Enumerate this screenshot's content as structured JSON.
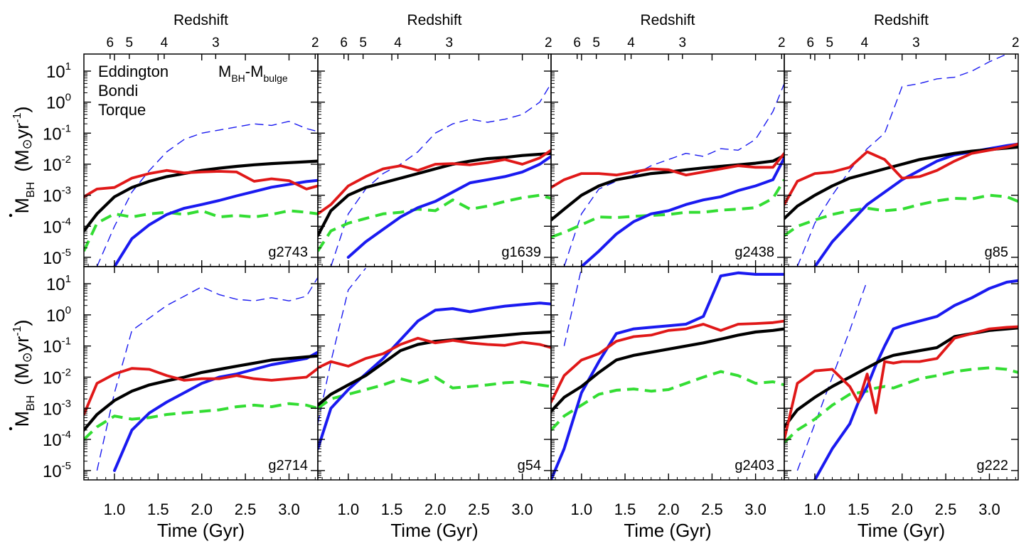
{
  "colors": {
    "eddington": "#000000",
    "bondi": "#1a1af0",
    "torque": "#e01818",
    "msigma": "#33dd33",
    "axis": "#000000"
  },
  "labels": {
    "top_axis": "Redshift",
    "x_axis": "Time  (Gyr)",
    "y_axis_main": "M",
    "y_axis_sub": "BH",
    "y_axis_units": "(M",
    "y_axis_units_sun": "⊙",
    "y_axis_units_tail": "yr",
    "y_axis_units_exp": "-1",
    "y_axis_units_close": ")"
  },
  "legend": {
    "eddington": "Eddington",
    "bondi": "Bondi",
    "torque": "Torque",
    "msigma_main": "M",
    "msigma_sub1": "BH",
    "msigma_dash": "-M",
    "msigma_sub2": "bulge"
  },
  "chart_data": {
    "type": "line",
    "x_ticks": [
      {
        "value": 1.0,
        "label": "1.0"
      },
      {
        "value": 1.5,
        "label": "1.5"
      },
      {
        "value": 2.0,
        "label": "2.0"
      },
      {
        "value": 2.5,
        "label": "2.5"
      },
      {
        "value": 3.0,
        "label": "3.0"
      }
    ],
    "redshift_ticks": [
      {
        "t": 0.95,
        "label": "6"
      },
      {
        "t": 1.17,
        "label": "5"
      },
      {
        "t": 1.57,
        "label": "4"
      },
      {
        "t": 2.16,
        "label": "3"
      },
      {
        "t": 3.3,
        "label": "2"
      }
    ],
    "y_ticks": [
      {
        "exp": 1,
        "label": "10",
        "sup": "1"
      },
      {
        "exp": 0,
        "label": "10",
        "sup": "0"
      },
      {
        "exp": -1,
        "label": "10",
        "sup": "-1"
      },
      {
        "exp": -2,
        "label": "10",
        "sup": "-2"
      },
      {
        "exp": -3,
        "label": "10",
        "sup": "-3"
      },
      {
        "exp": -4,
        "label": "10",
        "sup": "-4"
      },
      {
        "exp": -5,
        "label": "10",
        "sup": "-5"
      }
    ],
    "xlim": [
      0.65,
      3.33
    ],
    "ylim_log10": [
      -5.3,
      1.55
    ],
    "series_keys": [
      "bondi_dashed",
      "msigma",
      "bondi",
      "eddington",
      "torque"
    ],
    "panels": [
      {
        "label": "g2743",
        "t": [
          0.65,
          0.8,
          1.0,
          1.2,
          1.4,
          1.6,
          1.8,
          2.0,
          2.2,
          2.4,
          2.6,
          2.8,
          3.0,
          3.2,
          3.33
        ],
        "eddington": [
          -4.15,
          -3.6,
          -3.05,
          -2.75,
          -2.55,
          -2.4,
          -2.3,
          -2.2,
          -2.13,
          -2.07,
          -2.02,
          -1.98,
          -1.95,
          -1.92,
          -1.9
        ],
        "bondi_dashed": [
          null,
          -5.3,
          -4.0,
          -2.9,
          -2.2,
          -1.6,
          -1.2,
          -1.0,
          -0.9,
          -0.8,
          -0.7,
          -0.75,
          -0.62,
          -0.85,
          -0.95
        ],
        "bondi": [
          null,
          null,
          -5.3,
          -4.4,
          -3.95,
          -3.62,
          -3.42,
          -3.3,
          -3.17,
          -3.02,
          -2.88,
          -2.74,
          -2.65,
          -2.56,
          -2.52
        ],
        "torque": [
          -3.05,
          -2.8,
          -2.75,
          -2.45,
          -2.3,
          -2.2,
          -2.28,
          -2.25,
          -2.23,
          -2.25,
          -2.55,
          -2.47,
          -2.53,
          -2.8,
          -2.7
        ],
        "msigma": [
          -4.8,
          -3.9,
          -3.6,
          -3.7,
          -3.6,
          -3.55,
          -3.62,
          -3.5,
          -3.7,
          -3.65,
          -3.7,
          -3.62,
          -3.5,
          -3.55,
          -3.6
        ]
      },
      {
        "label": "g1639",
        "t": [
          0.65,
          0.8,
          1.0,
          1.2,
          1.4,
          1.6,
          1.8,
          2.0,
          2.2,
          2.4,
          2.6,
          2.8,
          3.0,
          3.2,
          3.33
        ],
        "eddington": [
          -4.3,
          -3.5,
          -3.0,
          -2.75,
          -2.6,
          -2.45,
          -2.3,
          -2.15,
          -2.0,
          -1.9,
          -1.82,
          -1.78,
          -1.72,
          -1.68,
          -1.65
        ],
        "bondi_dashed": [
          null,
          -5.3,
          -3.6,
          -2.8,
          -2.3,
          -2.0,
          -1.6,
          -1.0,
          -0.7,
          -0.55,
          -0.65,
          -0.55,
          -0.4,
          0.0,
          0.6
        ],
        "bondi": [
          null,
          null,
          -5.0,
          -4.5,
          -4.1,
          -3.7,
          -3.4,
          -3.2,
          -2.9,
          -2.6,
          -2.5,
          -2.4,
          -2.25,
          -2.0,
          -1.75
        ],
        "torque": [
          -3.6,
          -3.3,
          -2.7,
          -2.4,
          -2.15,
          -2.05,
          -2.2,
          -2.0,
          -1.98,
          -2.02,
          -1.95,
          -1.85,
          -2.0,
          -1.8,
          -1.55
        ],
        "msigma": [
          -4.8,
          -4.15,
          -3.9,
          -3.75,
          -3.6,
          -3.55,
          -3.45,
          -3.5,
          -3.15,
          -3.45,
          -3.35,
          -3.2,
          -3.08,
          -3.0,
          -3.1
        ]
      },
      {
        "label": "g2438",
        "t": [
          0.65,
          0.8,
          1.0,
          1.2,
          1.4,
          1.6,
          1.8,
          2.0,
          2.2,
          2.4,
          2.6,
          2.8,
          3.0,
          3.2,
          3.33
        ],
        "eddington": [
          -3.8,
          -3.45,
          -3.0,
          -2.7,
          -2.5,
          -2.4,
          -2.3,
          -2.25,
          -2.18,
          -2.12,
          -2.07,
          -2.02,
          -1.97,
          -1.9,
          -1.72
        ],
        "bondi_dashed": [
          null,
          -5.3,
          -3.6,
          -2.8,
          -2.55,
          -2.35,
          -2.05,
          -1.85,
          -1.65,
          -1.75,
          -1.5,
          -1.55,
          -1.2,
          -0.3,
          0.6
        ],
        "bondi": [
          null,
          null,
          -5.3,
          -4.8,
          -4.25,
          -3.85,
          -3.6,
          -3.5,
          -3.3,
          -3.15,
          -3.05,
          -2.85,
          -2.7,
          -2.5,
          -1.8
        ],
        "torque": [
          -2.75,
          -2.5,
          -2.3,
          -2.3,
          -2.35,
          -2.25,
          -2.15,
          -2.18,
          -2.35,
          -2.25,
          -2.15,
          -2.05,
          -2.1,
          -2.1,
          -1.65
        ],
        "msigma": [
          -4.35,
          -4.2,
          -3.95,
          -3.7,
          -3.72,
          -3.68,
          -3.65,
          -3.62,
          -3.55,
          -3.55,
          -3.48,
          -3.45,
          -3.4,
          -3.1,
          -2.5
        ]
      },
      {
        "label": "g85",
        "t": [
          0.65,
          0.8,
          1.0,
          1.2,
          1.4,
          1.6,
          1.8,
          2.0,
          2.2,
          2.4,
          2.6,
          2.8,
          3.0,
          3.2,
          3.33
        ],
        "eddington": [
          -3.75,
          -3.35,
          -3.0,
          -2.7,
          -2.45,
          -2.3,
          -2.15,
          -2.0,
          -1.85,
          -1.75,
          -1.65,
          -1.58,
          -1.53,
          -1.48,
          -1.45
        ],
        "bondi_dashed": [
          null,
          -5.3,
          -3.9,
          -3.0,
          -2.2,
          -1.5,
          -1.0,
          0.5,
          0.6,
          0.75,
          0.8,
          1.0,
          1.3,
          1.55,
          1.6
        ],
        "bondi": [
          null,
          null,
          -5.3,
          -4.5,
          -3.9,
          -3.3,
          -2.9,
          -2.5,
          -2.2,
          -1.9,
          -1.7,
          -1.6,
          -1.5,
          -1.4,
          -1.35
        ],
        "torque": [
          -3.3,
          -2.55,
          -2.3,
          -2.25,
          -2.1,
          -1.6,
          -1.85,
          -2.45,
          -2.4,
          -2.2,
          -1.9,
          -1.65,
          -1.55,
          -1.45,
          -1.35
        ],
        "msigma": [
          -4.3,
          -4.0,
          -3.8,
          -3.62,
          -3.5,
          -3.42,
          -3.5,
          -3.45,
          -3.3,
          -3.18,
          -3.1,
          -3.12,
          -3.0,
          -3.05,
          -3.2
        ]
      },
      {
        "label": "g2714",
        "t": [
          0.65,
          0.8,
          1.0,
          1.2,
          1.4,
          1.6,
          1.8,
          2.0,
          2.2,
          2.4,
          2.6,
          2.8,
          3.0,
          3.2,
          3.33
        ],
        "eddington": [
          -3.7,
          -3.2,
          -2.75,
          -2.45,
          -2.25,
          -2.12,
          -2.0,
          -1.85,
          -1.75,
          -1.65,
          -1.55,
          -1.45,
          -1.4,
          -1.35,
          -1.32
        ],
        "bondi_dashed": [
          null,
          -5.0,
          -2.5,
          -0.5,
          -0.1,
          0.3,
          0.6,
          0.9,
          0.65,
          0.5,
          0.45,
          0.55,
          0.45,
          0.6,
          1.2
        ],
        "bondi": [
          null,
          null,
          -5.0,
          -3.7,
          -3.15,
          -2.8,
          -2.5,
          -2.2,
          -2.0,
          -1.9,
          -1.75,
          -1.6,
          -1.5,
          -1.4,
          -1.2
        ],
        "torque": [
          -3.2,
          -2.2,
          -1.9,
          -1.72,
          -1.75,
          -1.95,
          -2.1,
          -2.05,
          -2.05,
          -1.95,
          -2.05,
          -2.1,
          -2.05,
          -2.0,
          -1.72
        ],
        "msigma": [
          -4.0,
          -3.6,
          -3.25,
          -3.35,
          -3.3,
          -3.2,
          -3.15,
          -3.1,
          -3.05,
          -2.95,
          -2.9,
          -2.95,
          -2.85,
          -2.9,
          -3.0
        ]
      },
      {
        "label": "g54",
        "t": [
          0.65,
          0.8,
          1.0,
          1.2,
          1.4,
          1.6,
          1.8,
          2.0,
          2.2,
          2.4,
          2.6,
          2.8,
          3.0,
          3.2,
          3.33
        ],
        "eddington": [
          -2.9,
          -2.55,
          -2.25,
          -1.95,
          -1.55,
          -1.15,
          -0.95,
          -0.85,
          -0.8,
          -0.75,
          -0.7,
          -0.65,
          -0.6,
          -0.57,
          -0.55
        ],
        "bondi_dashed": [
          -3.5,
          -1.5,
          0.8,
          1.5,
          null,
          null,
          null,
          null,
          null,
          null,
          null,
          null,
          null,
          null,
          null
        ],
        "bondi": [
          -4.3,
          -3.0,
          -2.4,
          -1.9,
          -1.4,
          -0.8,
          -0.2,
          0.15,
          0.2,
          0.1,
          0.2,
          0.28,
          0.33,
          0.38,
          0.35
        ],
        "torque": [
          -1.7,
          -1.5,
          -1.65,
          -1.4,
          -1.25,
          -0.95,
          -0.75,
          -0.9,
          -0.82,
          -0.9,
          -0.95,
          -0.98,
          -0.88,
          -0.95,
          -1.05
        ],
        "msigma": [
          -3.0,
          -2.7,
          -2.55,
          -2.4,
          -2.25,
          -2.05,
          -2.2,
          -2.0,
          -2.35,
          -2.3,
          -2.25,
          -2.18,
          -2.15,
          -2.25,
          -2.3
        ]
      },
      {
        "label": "g2403",
        "t": [
          0.65,
          0.8,
          1.0,
          1.2,
          1.4,
          1.6,
          1.8,
          2.0,
          2.2,
          2.4,
          2.6,
          2.8,
          3.0,
          3.2,
          3.33
        ],
        "eddington": [
          -3.1,
          -2.65,
          -2.3,
          -1.85,
          -1.45,
          -1.3,
          -1.2,
          -1.1,
          -1.0,
          -0.9,
          -0.78,
          -0.65,
          -0.55,
          -0.5,
          -0.45
        ],
        "bondi_dashed": [
          null,
          -1.0,
          1.5,
          null,
          null,
          null,
          null,
          null,
          null,
          null,
          null,
          null,
          null,
          null,
          null
        ],
        "bondi": [
          -5.3,
          -4.3,
          -2.5,
          -1.5,
          -0.6,
          -0.45,
          -0.4,
          -0.35,
          -0.3,
          -0.05,
          1.25,
          1.35,
          1.3,
          1.3,
          1.3
        ],
        "torque": [
          -2.8,
          -1.95,
          -1.45,
          -1.25,
          -0.85,
          -0.7,
          -0.65,
          -0.5,
          -0.45,
          -0.3,
          -0.5,
          -0.3,
          -0.28,
          -0.25,
          -0.2
        ],
        "msigma": [
          -3.7,
          -3.25,
          -2.9,
          -2.55,
          -2.42,
          -2.38,
          -2.45,
          -2.4,
          -2.2,
          -2.0,
          -1.82,
          -1.95,
          -2.2,
          -2.15,
          -2.25
        ]
      },
      {
        "label": "g222",
        "t": [
          0.65,
          0.8,
          1.0,
          1.2,
          1.4,
          1.5,
          1.6,
          1.7,
          1.8,
          1.9,
          2.0,
          2.2,
          2.4,
          2.6,
          2.8,
          3.0,
          3.2,
          3.33
        ],
        "eddington": [
          -3.6,
          -3.05,
          -2.65,
          -2.3,
          -2.0,
          -1.85,
          -1.7,
          -1.55,
          -1.4,
          -1.3,
          -1.25,
          -1.15,
          -1.05,
          -0.7,
          -0.6,
          -0.5,
          -0.45,
          -0.42
        ],
        "bondi_dashed": [
          null,
          -5.0,
          -3.5,
          -2.0,
          -0.5,
          0.3,
          1.1,
          null,
          null,
          null,
          null,
          null,
          null,
          null,
          null,
          null,
          null,
          null
        ],
        "bondi": [
          null,
          null,
          -5.3,
          -4.3,
          -3.5,
          -2.8,
          -2.3,
          -1.6,
          -1.0,
          -0.45,
          -0.35,
          -0.2,
          -0.05,
          0.3,
          0.55,
          0.85,
          1.05,
          1.1
        ],
        "torque": [
          -4.0,
          -2.2,
          -1.8,
          -1.75,
          -2.3,
          -2.8,
          -1.9,
          -3.15,
          -1.5,
          -1.55,
          -1.5,
          -1.5,
          -1.4,
          -0.75,
          -0.6,
          -0.45,
          -0.4,
          -0.38
        ],
        "msigma": [
          -4.1,
          -3.7,
          -3.35,
          -2.9,
          -2.55,
          -2.5,
          -2.45,
          -2.35,
          -2.3,
          -2.35,
          -2.25,
          -2.05,
          -1.95,
          -1.82,
          -1.75,
          -1.7,
          -1.75,
          -1.85
        ]
      }
    ]
  }
}
